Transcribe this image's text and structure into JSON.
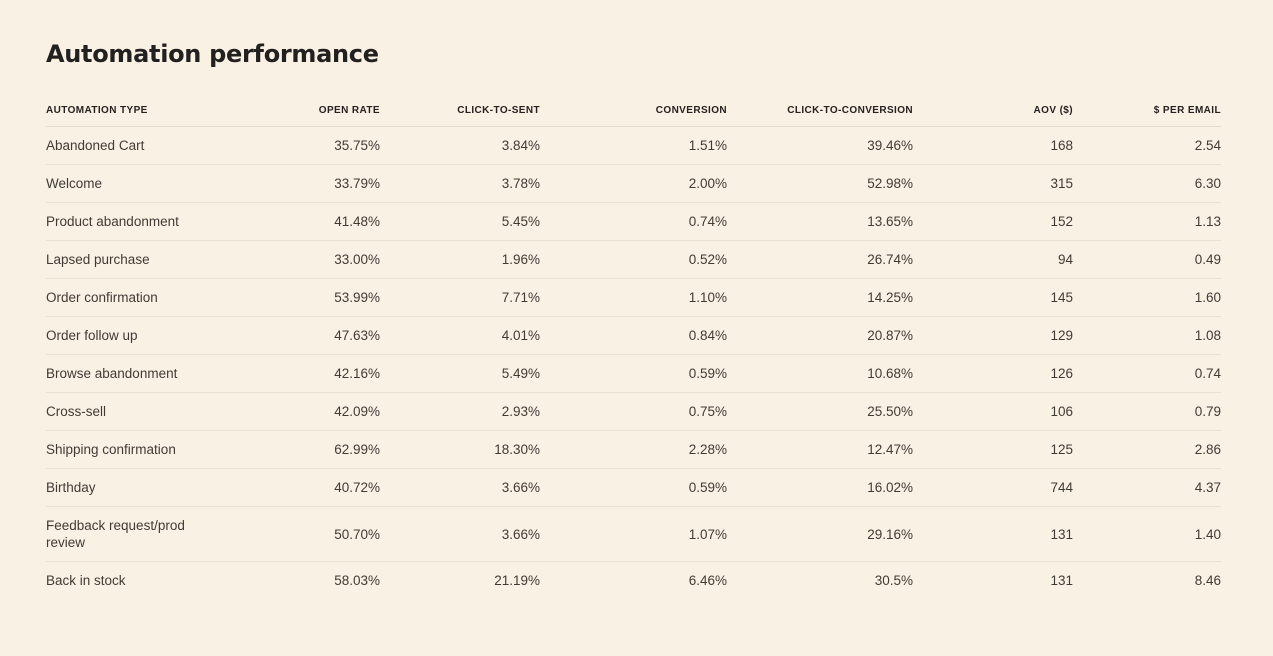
{
  "page": {
    "title": "Automation performance",
    "background_color": "#faf1e5",
    "title_color": "#232020",
    "divider_color": "#eae1d3",
    "header_text_color": "#262220",
    "cell_text_color": "#403b35"
  },
  "chart_data": {
    "type": "table",
    "title": "Automation performance",
    "columns": [
      "AUTOMATION TYPE",
      "OPEN RATE",
      "CLICK-TO-SENT",
      "CONVERSION",
      "CLICK-TO-CONVERSION",
      "AOV ($)",
      "$ PER EMAIL"
    ],
    "rows": [
      [
        "Abandoned Cart",
        "35.75%",
        "3.84%",
        "1.51%",
        "39.46%",
        "168",
        "2.54"
      ],
      [
        "Welcome",
        "33.79%",
        "3.78%",
        "2.00%",
        "52.98%",
        "315",
        "6.30"
      ],
      [
        "Product abandonment",
        "41.48%",
        "5.45%",
        "0.74%",
        "13.65%",
        "152",
        "1.13"
      ],
      [
        "Lapsed purchase",
        "33.00%",
        "1.96%",
        "0.52%",
        "26.74%",
        "94",
        "0.49"
      ],
      [
        "Order confirmation",
        "53.99%",
        "7.71%",
        "1.10%",
        "14.25%",
        "145",
        "1.60"
      ],
      [
        "Order follow up",
        "47.63%",
        "4.01%",
        "0.84%",
        "20.87%",
        "129",
        "1.08"
      ],
      [
        "Browse abandonment",
        "42.16%",
        "5.49%",
        "0.59%",
        "10.68%",
        "126",
        "0.74"
      ],
      [
        "Cross-sell",
        "42.09%",
        "2.93%",
        "0.75%",
        "25.50%",
        "106",
        "0.79"
      ],
      [
        "Shipping confirmation",
        "62.99%",
        "18.30%",
        "2.28%",
        "12.47%",
        "125",
        "2.86"
      ],
      [
        "Birthday",
        "40.72%",
        "3.66%",
        "0.59%",
        "16.02%",
        "744",
        "4.37"
      ],
      [
        "Feedback request/prod review",
        "50.70%",
        "3.66%",
        "1.07%",
        "29.16%",
        "131",
        "1.40"
      ],
      [
        "Back in stock",
        "58.03%",
        "21.19%",
        "6.46%",
        "30.5%",
        "131",
        "8.46"
      ]
    ]
  }
}
